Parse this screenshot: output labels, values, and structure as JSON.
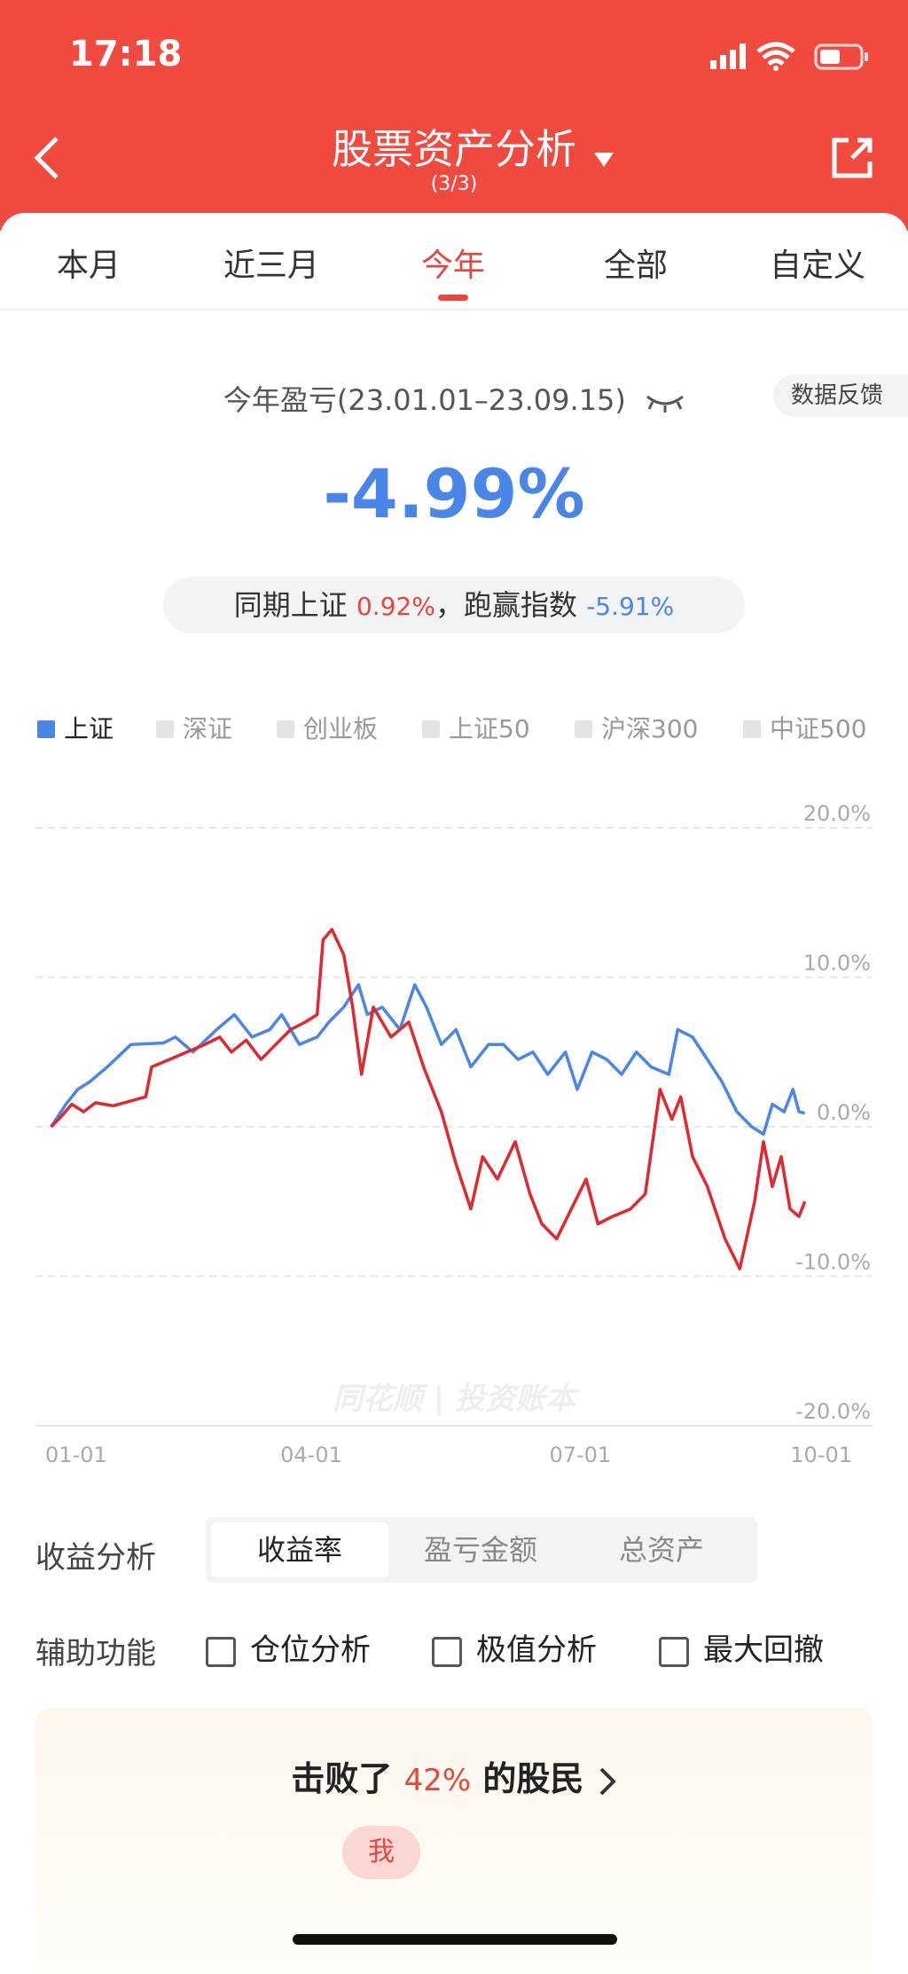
{
  "status_bar": {
    "time": "17:18"
  },
  "header": {
    "title": "股票资产分析",
    "subtitle": "(3/3)"
  },
  "tabs": [
    "本月",
    "近三月",
    "今年",
    "全部",
    "自定义"
  ],
  "summary": {
    "title": "今年盈亏(23.01.01–23.09.15)",
    "feedback": "数据反馈",
    "value": "-4.99%",
    "compare_prefix": "同期上证",
    "index_return": "0.92%",
    "compare_middle": "，跑赢指数",
    "excess_return": "-5.91%"
  },
  "chart_data": {
    "type": "line",
    "legend_items": [
      "深证",
      "创业板",
      "上证50",
      "沪深300",
      "中证500"
    ],
    "watermark": "同花顺 | 投资账本",
    "xlim": [
      "01-01",
      "10-01"
    ],
    "xticks": [
      "01-01",
      "04-01",
      "07-01",
      "10-01"
    ],
    "ylim": [
      -20,
      20
    ],
    "yticks": [
      {
        "value": 20,
        "label": "20.0%"
      },
      {
        "value": 10,
        "label": "10.0%"
      },
      {
        "value": 0,
        "label": "0.0%"
      },
      {
        "value": -10,
        "label": "-10.0%"
      },
      {
        "value": -20,
        "label": "-20.0%"
      }
    ],
    "grid": true,
    "series": [
      {
        "color": "#e0282f",
        "x": [
          "01-03",
          "01-06",
          "01-10",
          "01-14",
          "01-18",
          "01-24",
          "02-04",
          "02-06",
          "02-12",
          "02-18",
          "02-24",
          "03-01",
          "03-05",
          "03-10",
          "03-15",
          "03-20",
          "03-25",
          "03-30",
          "04-03",
          "04-05",
          "04-08",
          "04-12",
          "04-15",
          "04-18",
          "04-22",
          "04-28",
          "05-04",
          "05-09",
          "05-15",
          "05-20",
          "05-25",
          "05-29",
          "06-03",
          "06-09",
          "06-14",
          "06-18",
          "06-23",
          "06-28",
          "07-03",
          "07-07",
          "07-12",
          "07-18",
          "07-23",
          "07-28",
          "08-01",
          "08-04",
          "08-08",
          "08-13",
          "08-19",
          "08-24",
          "08-29",
          "09-01",
          "09-04",
          "09-07",
          "09-10",
          "09-13",
          "09-15"
        ],
        "values": [
          0.0,
          0.6,
          1.5,
          1.0,
          1.6,
          1.4,
          2.0,
          4.0,
          4.5,
          5.0,
          5.5,
          6.0,
          5.0,
          5.8,
          4.5,
          5.5,
          6.5,
          7.0,
          7.5,
          12.5,
          13.2,
          11.5,
          8.0,
          3.5,
          8.0,
          6.0,
          7.0,
          4.0,
          1.0,
          -2.5,
          -5.5,
          -2.0,
          -3.5,
          -1.0,
          -4.5,
          -6.5,
          -7.5,
          -5.5,
          -3.5,
          -6.5,
          -6.0,
          -5.5,
          -4.5,
          2.5,
          0.5,
          2.0,
          -2.0,
          -4.0,
          -7.5,
          -9.5,
          -5.0,
          -1.0,
          -4.0,
          -2.0,
          -5.5,
          -6.0,
          -5.0
        ]
      },
      {
        "name": "上证",
        "color": "#4a86e8",
        "x": [
          "01-03",
          "01-08",
          "01-12",
          "01-16",
          "01-22",
          "01-30",
          "02-10",
          "02-14",
          "02-20",
          "02-28",
          "03-06",
          "03-12",
          "03-18",
          "03-22",
          "03-28",
          "04-03",
          "04-07",
          "04-12",
          "04-17",
          "04-20",
          "04-25",
          "05-01",
          "05-06",
          "05-10",
          "05-15",
          "05-20",
          "05-25",
          "05-31",
          "06-05",
          "06-10",
          "06-15",
          "06-20",
          "06-26",
          "06-30",
          "07-05",
          "07-10",
          "07-15",
          "07-20",
          "07-25",
          "07-31",
          "08-03",
          "08-08",
          "08-13",
          "08-18",
          "08-23",
          "08-28",
          "09-01",
          "09-04",
          "09-08",
          "09-11",
          "09-13",
          "09-15"
        ],
        "values": [
          0.0,
          1.5,
          2.5,
          3.0,
          4.0,
          5.5,
          5.6,
          6.0,
          5.0,
          6.5,
          7.5,
          6.0,
          6.5,
          7.5,
          5.5,
          6.0,
          7.0,
          8.0,
          9.5,
          7.5,
          8.0,
          6.5,
          9.5,
          8.0,
          5.5,
          6.5,
          4.0,
          5.5,
          5.5,
          4.5,
          5.0,
          3.5,
          5.0,
          2.5,
          5.0,
          4.5,
          3.5,
          5.0,
          4.0,
          3.5,
          6.5,
          6.0,
          4.5,
          3.0,
          1.0,
          0.0,
          -0.5,
          1.5,
          1.0,
          2.5,
          1.0,
          0.9
        ]
      }
    ]
  },
  "controls": {
    "profit_label": "收益分析",
    "segments": [
      "收益率",
      "盈亏金额",
      "总资产"
    ],
    "aux_label": "辅助功能",
    "options": [
      "仓位分析",
      "极值分析",
      "最大回撤"
    ]
  },
  "rank": {
    "prefix": "击败了",
    "percent": "42%",
    "suffix": "的股民",
    "me": "我"
  }
}
